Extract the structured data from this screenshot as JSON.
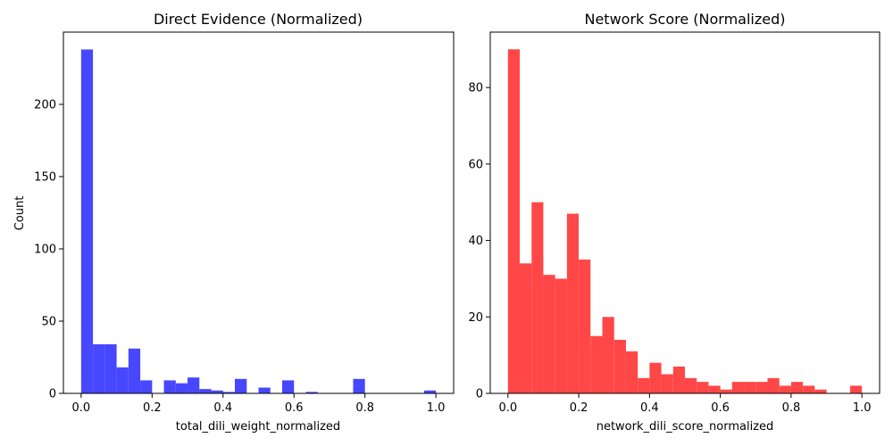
{
  "chart_data": [
    {
      "type": "bar",
      "title": "Direct Evidence (Normalized)",
      "xlabel": "total_dili_weight_normalized",
      "ylabel": "Count",
      "xlim": [
        -0.05,
        1.05
      ],
      "ylim": [
        0,
        250
      ],
      "xticks": [
        0.0,
        0.2,
        0.4,
        0.6,
        0.8,
        1.0
      ],
      "xtick_labels": [
        "0.0",
        "0.2",
        "0.4",
        "0.6",
        "0.8",
        "1.0"
      ],
      "yticks": [
        0,
        50,
        100,
        150,
        200
      ],
      "ytick_labels": [
        "0",
        "50",
        "100",
        "150",
        "200"
      ],
      "bin_edges": [
        0,
        0.0333,
        0.0667,
        0.1,
        0.1333,
        0.1667,
        0.2,
        0.2333,
        0.2667,
        0.3,
        0.3333,
        0.3667,
        0.4,
        0.4333,
        0.4667,
        0.5,
        0.5333,
        0.5667,
        0.6,
        0.6333,
        0.6667,
        0.7,
        0.7333,
        0.7667,
        0.8,
        0.8333,
        0.8667,
        0.9,
        0.9333,
        0.9667,
        1.0
      ],
      "values": [
        238,
        34,
        34,
        18,
        31,
        9,
        0,
        9,
        7,
        11,
        3,
        2,
        1,
        10,
        0,
        4,
        0,
        9,
        0,
        1,
        0,
        0,
        0,
        10,
        0,
        0,
        0,
        0,
        0,
        2
      ],
      "color": "#4747ff",
      "grid": false,
      "legend": "none"
    },
    {
      "type": "bar",
      "title": "Network Score (Normalized)",
      "xlabel": "network_dili_score_normalized",
      "ylabel": "",
      "xlim": [
        -0.05,
        1.05
      ],
      "ylim": [
        0,
        94.5
      ],
      "xticks": [
        0.0,
        0.2,
        0.4,
        0.6,
        0.8,
        1.0
      ],
      "xtick_labels": [
        "0.0",
        "0.2",
        "0.4",
        "0.6",
        "0.8",
        "1.0"
      ],
      "yticks": [
        0,
        20,
        40,
        60,
        80
      ],
      "ytick_labels": [
        "0",
        "20",
        "40",
        "60",
        "80"
      ],
      "bin_edges": [
        0,
        0.0333,
        0.0667,
        0.1,
        0.1333,
        0.1667,
        0.2,
        0.2333,
        0.2667,
        0.3,
        0.3333,
        0.3667,
        0.4,
        0.4333,
        0.4667,
        0.5,
        0.5333,
        0.5667,
        0.6,
        0.6333,
        0.6667,
        0.7,
        0.7333,
        0.7667,
        0.8,
        0.8333,
        0.8667,
        0.9,
        0.9333,
        0.9667,
        1.0
      ],
      "values": [
        90,
        34,
        50,
        31,
        30,
        47,
        35,
        15,
        20,
        14,
        11,
        4,
        8,
        5,
        7,
        4,
        3,
        2,
        1,
        3,
        3,
        3,
        4,
        2,
        3,
        2,
        1,
        0,
        0,
        2
      ],
      "color": "#ff4747",
      "grid": false,
      "legend": "none"
    }
  ]
}
